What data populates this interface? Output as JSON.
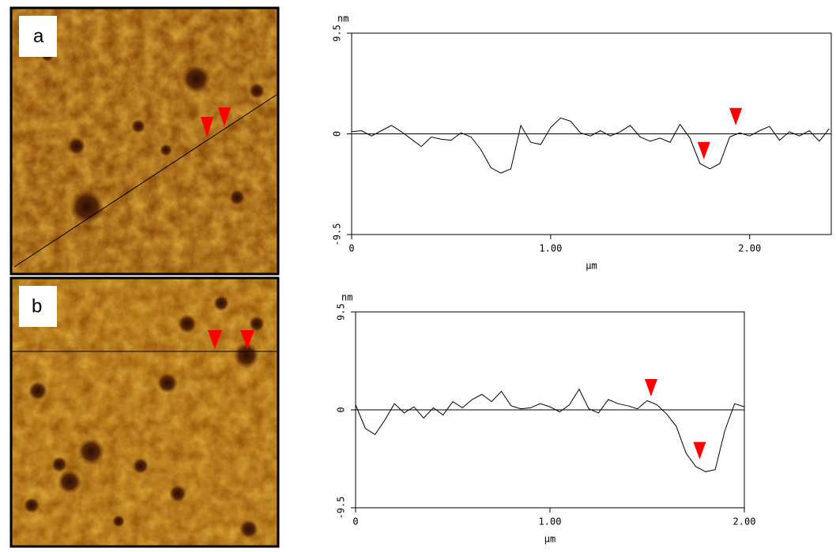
{
  "panels": [
    "a",
    "b"
  ],
  "chart_data": [
    {
      "type": "line",
      "y_label": "nm",
      "x_label": "µm",
      "xlim": [
        0,
        2.41
      ],
      "ylim": [
        -9.5,
        9.5
      ],
      "xticks": [
        0,
        {
          "value": 1,
          "label": "1.00"
        },
        {
          "value": 2,
          "label": "2.00"
        }
      ],
      "yticks": [
        9.5,
        0,
        -9.5
      ],
      "zero_line": true,
      "color": "#000000",
      "x": [
        0,
        0.05,
        0.1,
        0.15,
        0.2,
        0.25,
        0.3,
        0.35,
        0.4,
        0.45,
        0.5,
        0.55,
        0.6,
        0.65,
        0.7,
        0.75,
        0.8,
        0.85,
        0.9,
        0.95,
        1.0,
        1.05,
        1.1,
        1.15,
        1.2,
        1.25,
        1.3,
        1.35,
        1.4,
        1.45,
        1.5,
        1.55,
        1.6,
        1.65,
        1.7,
        1.75,
        1.8,
        1.85,
        1.9,
        1.95,
        2.0,
        2.05,
        2.1,
        2.15,
        2.2,
        2.25,
        2.3,
        2.35,
        2.4
      ],
      "values": [
        0.2,
        0.3,
        -0.2,
        0.3,
        0.8,
        0.2,
        -0.5,
        -1.2,
        -0.3,
        -0.5,
        -0.6,
        0.1,
        -0.3,
        -1.5,
        -3.2,
        -3.7,
        -3.3,
        0.8,
        -0.8,
        -1.0,
        0.6,
        1.5,
        1.2,
        0.1,
        -0.2,
        0.3,
        -0.2,
        0.2,
        0.8,
        -0.3,
        -0.7,
        -0.4,
        -0.8,
        0.9,
        -0.4,
        -2.8,
        -3.3,
        -2.8,
        -0.3,
        0.1,
        -0.2,
        0.3,
        0.7,
        -0.6,
        0.2,
        -0.2,
        0.3,
        -0.7,
        0.5
      ],
      "markers": {
        "color": "#ff0000",
        "x": [
          1.77,
          1.93
        ],
        "values": [
          -2.4,
          0.8
        ]
      }
    },
    {
      "type": "line",
      "y_label": "nm",
      "x_label": "µm",
      "xlim": [
        0,
        2.0
      ],
      "ylim": [
        -9.5,
        9.5
      ],
      "xticks": [
        0,
        {
          "value": 1,
          "label": "1.00"
        },
        {
          "value": 2,
          "label": "2.00"
        }
      ],
      "yticks": [
        9.5,
        0,
        -9.5
      ],
      "zero_line": true,
      "color": "#000000",
      "x": [
        0,
        0.05,
        0.1,
        0.15,
        0.2,
        0.25,
        0.3,
        0.35,
        0.4,
        0.45,
        0.5,
        0.55,
        0.6,
        0.65,
        0.7,
        0.75,
        0.8,
        0.85,
        0.9,
        0.95,
        1.0,
        1.05,
        1.1,
        1.15,
        1.2,
        1.25,
        1.3,
        1.35,
        1.4,
        1.45,
        1.5,
        1.55,
        1.6,
        1.65,
        1.7,
        1.75,
        1.8,
        1.85,
        1.9,
        1.95,
        2.0
      ],
      "values": [
        0.5,
        -1.8,
        -2.4,
        -1.0,
        0.6,
        -0.3,
        0.3,
        -0.8,
        0.2,
        -0.5,
        0.8,
        0.2,
        1.0,
        1.5,
        0.8,
        1.8,
        0.4,
        0.1,
        0.2,
        0.6,
        0.3,
        -0.2,
        0.5,
        2.0,
        0.1,
        -0.3,
        1.0,
        0.6,
        0.4,
        0.1,
        0.9,
        0.5,
        -0.4,
        -1.6,
        -4.2,
        -5.5,
        -6.0,
        -5.8,
        -2.0,
        0.6,
        0.3
      ],
      "markers": {
        "color": "#ff0000",
        "x": [
          1.52,
          1.77
        ],
        "values": [
          1.3,
          -4.8
        ]
      }
    }
  ]
}
